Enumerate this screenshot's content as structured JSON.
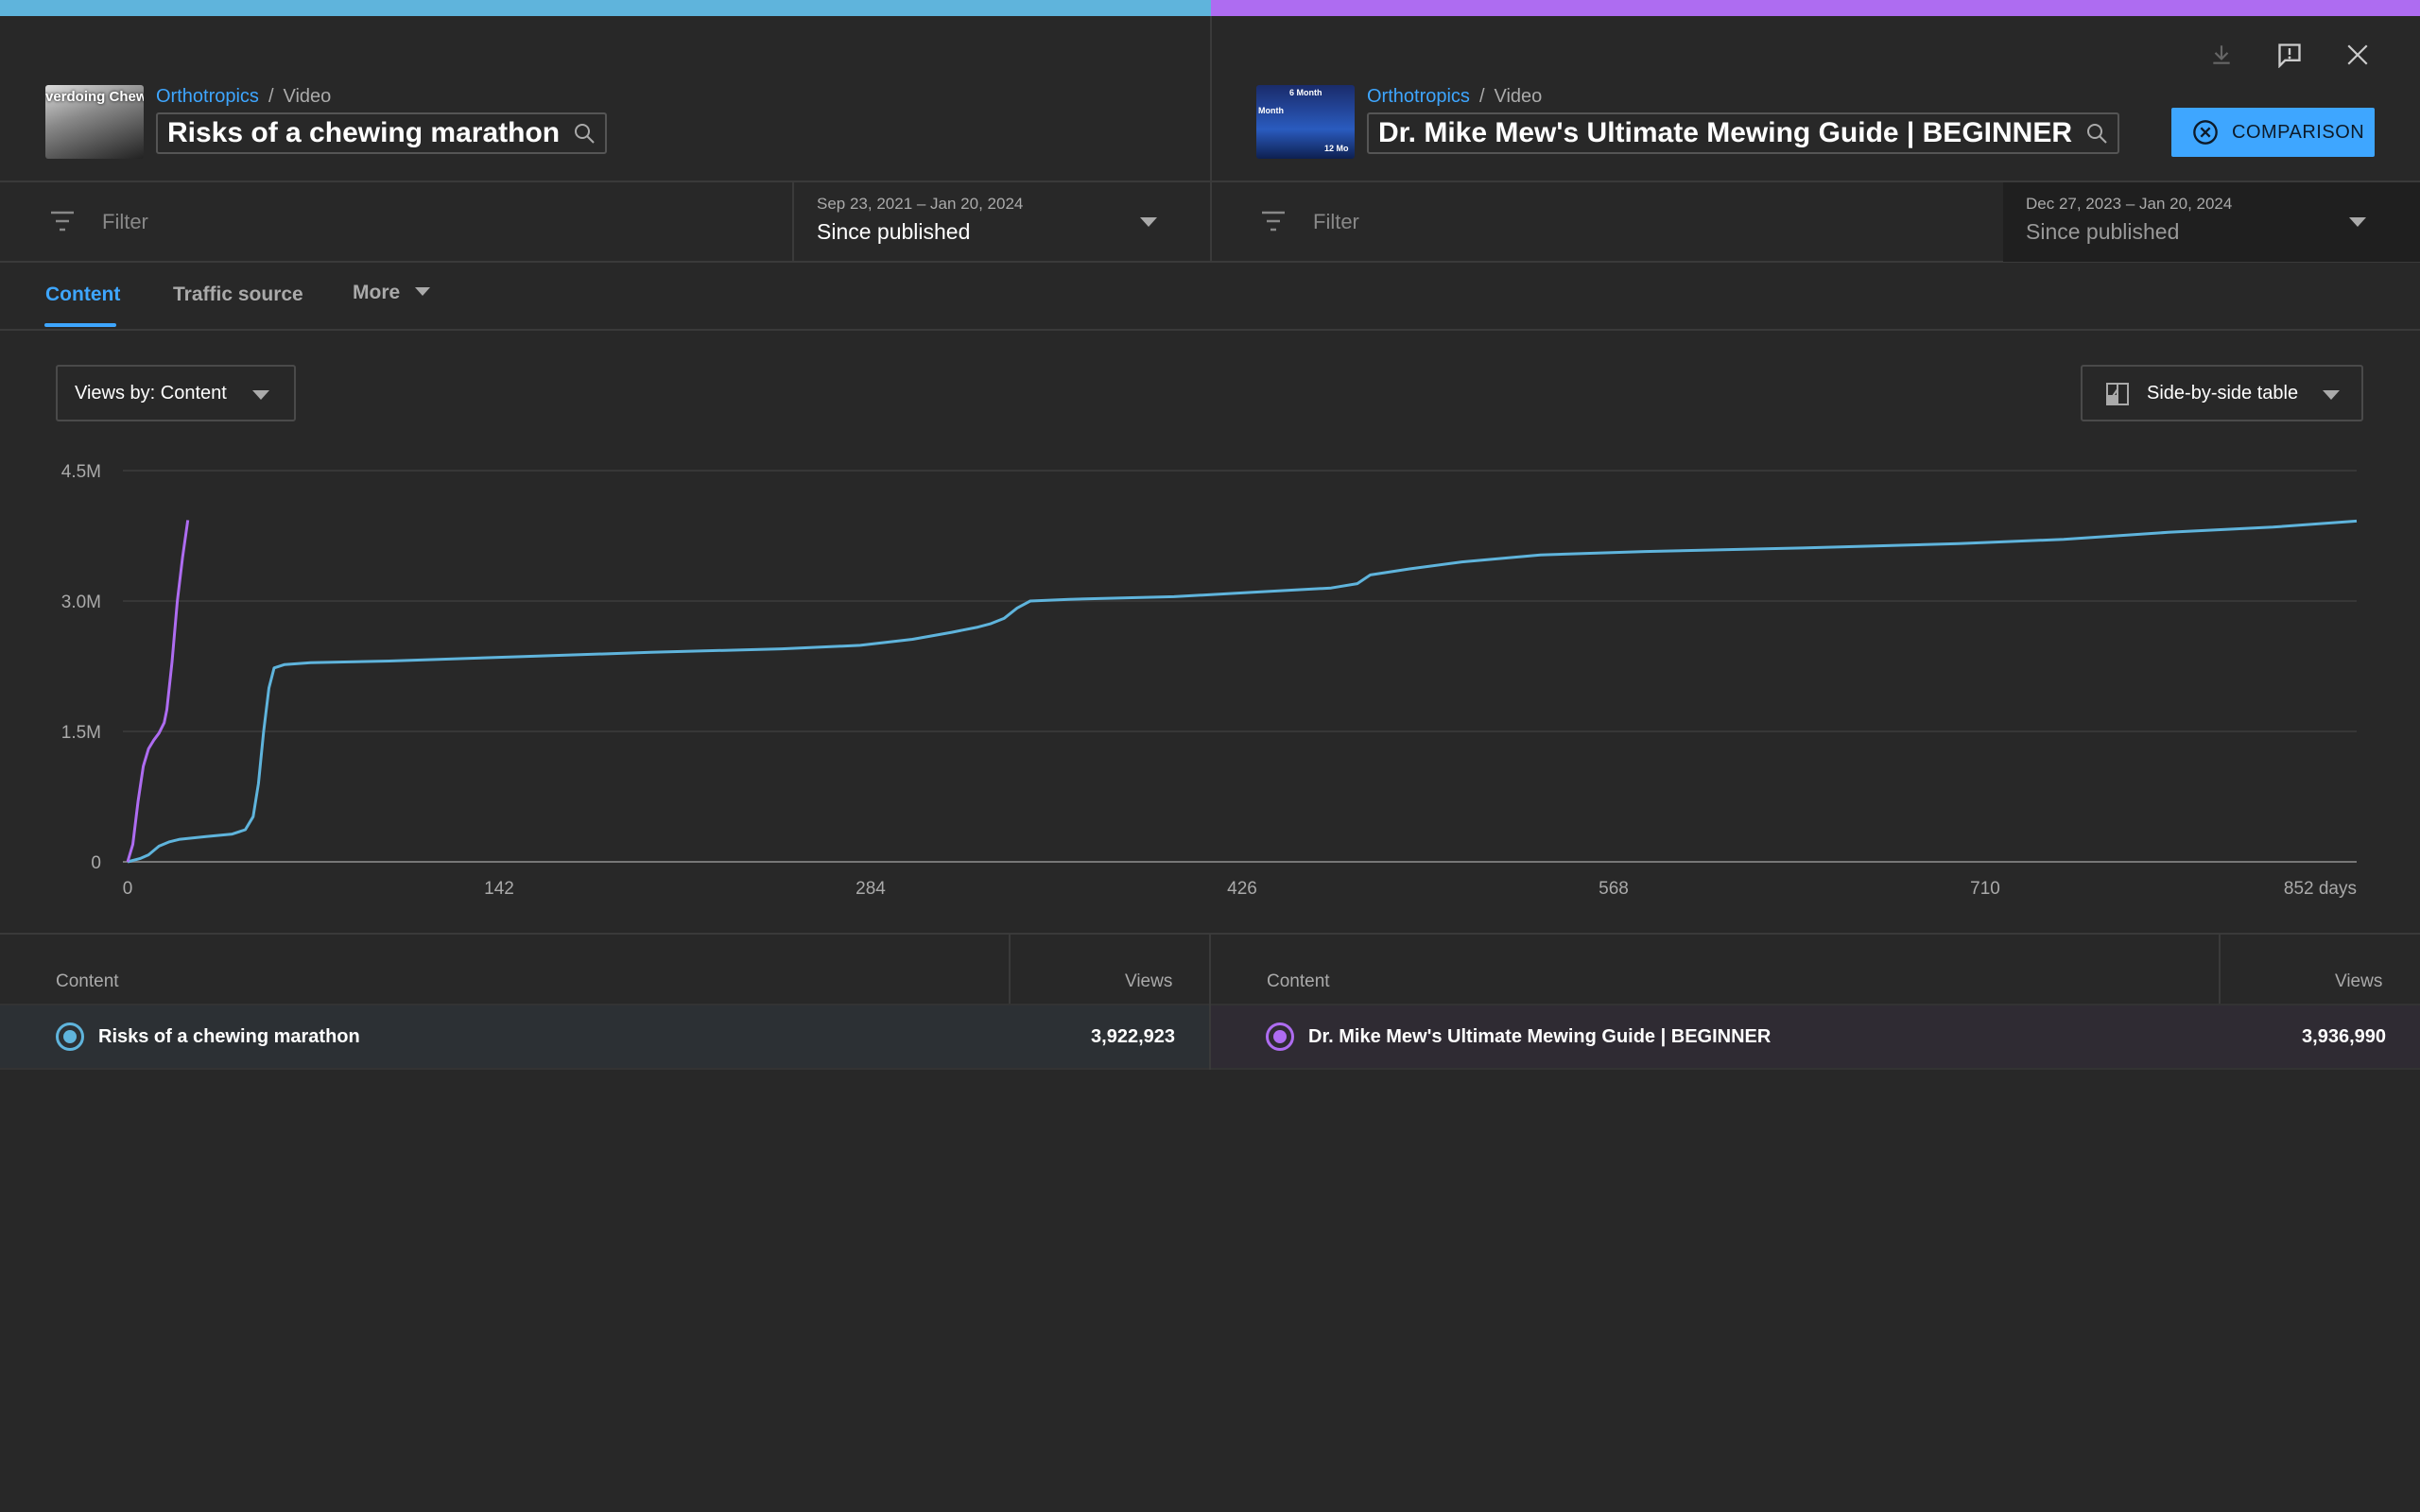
{
  "colors": {
    "left_accent": "#5fb4dc",
    "right_accent": "#ae6cf1",
    "primary": "#3ea6ff"
  },
  "left": {
    "breadcrumb": {
      "channel": "Orthotropics",
      "separator": "/",
      "type": "Video"
    },
    "title": "Risks of a chewing marathon",
    "thumbnail_text": "verdoing Chewin",
    "filter_placeholder": "Filter",
    "date_range": "Sep 23, 2021 – Jan 20, 2024",
    "period": "Since published"
  },
  "right": {
    "breadcrumb": {
      "channel": "Orthotropics",
      "separator": "/",
      "type": "Video"
    },
    "title": "Dr. Mike Mew's Ultimate Mewing Guide | BEGINNER",
    "thumbnail_text": {
      "a": "6 Month",
      "b": "Month",
      "c": "12 Mo"
    },
    "filter_placeholder": "Filter",
    "date_range": "Dec 27, 2023 – Jan 20, 2024",
    "period": "Since published"
  },
  "header_icons": [
    "download-icon",
    "feedback-icon",
    "close-icon"
  ],
  "comparison_button": "COMPARISON",
  "tabs": [
    "Content",
    "Traffic source",
    "More"
  ],
  "views_by": "Views by: Content",
  "table_mode": "Side-by-side table",
  "chart_data": {
    "type": "line",
    "x_unit": "days",
    "x_ticks": [
      "0",
      "142",
      "284",
      "426",
      "568",
      "710",
      "852 days"
    ],
    "y_ticks": [
      "0",
      "1.5M",
      "3.0M",
      "4.5M"
    ],
    "xlim": [
      0,
      852
    ],
    "ylim": [
      0,
      4500000
    ],
    "grid": true,
    "series": [
      {
        "color": "#5fb4dc",
        "points": [
          [
            0,
            0
          ],
          [
            5,
            40000
          ],
          [
            8,
            80000
          ],
          [
            12,
            180000
          ],
          [
            16,
            230000
          ],
          [
            20,
            260000
          ],
          [
            30,
            290000
          ],
          [
            40,
            320000
          ],
          [
            45,
            370000
          ],
          [
            48,
            520000
          ],
          [
            50,
            900000
          ],
          [
            52,
            1500000
          ],
          [
            54,
            2000000
          ],
          [
            56,
            2230000
          ],
          [
            60,
            2270000
          ],
          [
            70,
            2290000
          ],
          [
            100,
            2310000
          ],
          [
            150,
            2360000
          ],
          [
            200,
            2410000
          ],
          [
            250,
            2450000
          ],
          [
            280,
            2490000
          ],
          [
            300,
            2560000
          ],
          [
            315,
            2640000
          ],
          [
            325,
            2700000
          ],
          [
            330,
            2740000
          ],
          [
            335,
            2800000
          ],
          [
            340,
            2920000
          ],
          [
            345,
            3000000
          ],
          [
            360,
            3020000
          ],
          [
            400,
            3050000
          ],
          [
            430,
            3100000
          ],
          [
            460,
            3150000
          ],
          [
            470,
            3200000
          ],
          [
            475,
            3300000
          ],
          [
            490,
            3370000
          ],
          [
            510,
            3450000
          ],
          [
            540,
            3530000
          ],
          [
            580,
            3570000
          ],
          [
            640,
            3610000
          ],
          [
            700,
            3660000
          ],
          [
            740,
            3710000
          ],
          [
            780,
            3790000
          ],
          [
            820,
            3850000
          ],
          [
            852,
            3920000
          ]
        ]
      },
      {
        "color": "#ae6cf1",
        "points": [
          [
            0,
            0
          ],
          [
            2,
            200000
          ],
          [
            4,
            700000
          ],
          [
            6,
            1100000
          ],
          [
            8,
            1300000
          ],
          [
            10,
            1400000
          ],
          [
            12,
            1480000
          ],
          [
            14,
            1600000
          ],
          [
            15,
            1750000
          ],
          [
            17,
            2300000
          ],
          [
            19,
            3000000
          ],
          [
            21,
            3500000
          ],
          [
            23,
            3930000
          ]
        ]
      }
    ]
  },
  "table": {
    "left": {
      "col_content": "Content",
      "col_views": "Views",
      "title": "Risks of a chewing marathon",
      "views": "3,922,923"
    },
    "right": {
      "col_content": "Content",
      "col_views": "Views",
      "title": "Dr. Mike Mew's Ultimate Mewing Guide | BEGINNER",
      "views": "3,936,990"
    }
  }
}
